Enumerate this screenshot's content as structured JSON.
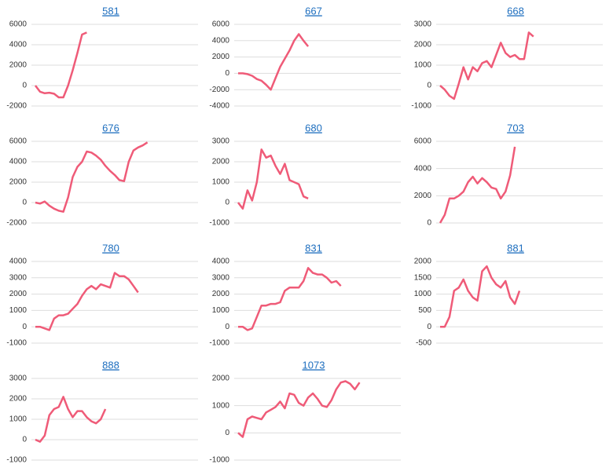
{
  "chart_data": [
    {
      "type": "line",
      "title": "581",
      "color": "#ef5b78",
      "grid": true,
      "ylim": [
        -2000,
        6000
      ],
      "yticks": [
        -2000,
        0,
        2000,
        4000,
        6000
      ],
      "values": [
        0,
        -600,
        -750,
        -700,
        -800,
        -1150,
        -1150,
        0,
        1500,
        3200,
        5000,
        5200
      ]
    },
    {
      "type": "line",
      "title": "667",
      "color": "#ef5b78",
      "grid": true,
      "ylim": [
        -4000,
        6000
      ],
      "yticks": [
        -4000,
        -2000,
        0,
        2000,
        4000,
        6000
      ],
      "values": [
        0,
        0,
        -100,
        -300,
        -700,
        -900,
        -1400,
        -2000,
        -600,
        800,
        1800,
        2800,
        4000,
        4800,
        4000,
        3300
      ]
    },
    {
      "type": "line",
      "title": "668",
      "color": "#ef5b78",
      "grid": true,
      "ylim": [
        -1000,
        3000
      ],
      "yticks": [
        -1000,
        0,
        1000,
        2000,
        3000
      ],
      "values": [
        0,
        -200,
        -500,
        -650,
        100,
        900,
        300,
        900,
        700,
        1100,
        1200,
        900,
        1500,
        2100,
        1600,
        1400,
        1500,
        1300,
        1300,
        2600,
        2400
      ]
    },
    {
      "type": "line",
      "title": "676",
      "color": "#ef5b78",
      "grid": true,
      "ylim": [
        -2000,
        6000
      ],
      "yticks": [
        -2000,
        0,
        2000,
        4000,
        6000
      ],
      "values": [
        0,
        -100,
        100,
        -300,
        -600,
        -800,
        -900,
        500,
        2500,
        3500,
        4000,
        5000,
        4900,
        4600,
        4200,
        3600,
        3100,
        2700,
        2200,
        2100,
        4000,
        5100,
        5400,
        5600,
        5900
      ]
    },
    {
      "type": "line",
      "title": "680",
      "color": "#ef5b78",
      "grid": true,
      "ylim": [
        -1000,
        3000
      ],
      "yticks": [
        -1000,
        0,
        1000,
        2000,
        3000
      ],
      "values": [
        0,
        -300,
        600,
        100,
        1000,
        2600,
        2200,
        2300,
        1800,
        1400,
        1900,
        1100,
        1000,
        900,
        300,
        200
      ]
    },
    {
      "type": "line",
      "title": "703",
      "color": "#ef5b78",
      "grid": true,
      "ylim": [
        0,
        6000
      ],
      "yticks": [
        0,
        2000,
        4000,
        6000
      ],
      "values": [
        0,
        600,
        1800,
        1800,
        2000,
        2300,
        3000,
        3400,
        2900,
        3300,
        3000,
        2600,
        2500,
        1800,
        2300,
        3500,
        5600
      ]
    },
    {
      "type": "line",
      "title": "780",
      "color": "#ef5b78",
      "grid": true,
      "ylim": [
        -1000,
        4000
      ],
      "yticks": [
        -1000,
        0,
        1000,
        2000,
        3000,
        4000
      ],
      "values": [
        0,
        0,
        -100,
        -200,
        500,
        700,
        700,
        800,
        1100,
        1400,
        1900,
        2300,
        2500,
        2300,
        2600,
        2500,
        2400,
        3300,
        3100,
        3100,
        2900,
        2500,
        2100
      ]
    },
    {
      "type": "line",
      "title": "831",
      "color": "#ef5b78",
      "grid": true,
      "ylim": [
        -1000,
        4000
      ],
      "yticks": [
        -1000,
        0,
        1000,
        2000,
        3000,
        4000
      ],
      "values": [
        0,
        0,
        -200,
        -100,
        600,
        1300,
        1300,
        1400,
        1400,
        1500,
        2200,
        2400,
        2400,
        2400,
        2800,
        3600,
        3300,
        3200,
        3200,
        3000,
        2700,
        2800,
        2500
      ]
    },
    {
      "type": "line",
      "title": "881",
      "color": "#ef5b78",
      "grid": true,
      "ylim": [
        -500,
        2000
      ],
      "yticks": [
        -500,
        0,
        500,
        1000,
        1500,
        2000
      ],
      "values": [
        0,
        0,
        300,
        1100,
        1200,
        1450,
        1100,
        900,
        800,
        1700,
        1850,
        1500,
        1300,
        1200,
        1400,
        900,
        700,
        1100
      ]
    },
    {
      "type": "line",
      "title": "888",
      "color": "#ef5b78",
      "grid": true,
      "ylim": [
        -1000,
        3000
      ],
      "yticks": [
        -1000,
        0,
        1000,
        2000,
        3000
      ],
      "values": [
        0,
        -100,
        200,
        1200,
        1500,
        1600,
        2100,
        1500,
        1100,
        1400,
        1400,
        1100,
        900,
        800,
        1000,
        1500
      ]
    },
    {
      "type": "line",
      "title": "1073",
      "color": "#ef5b78",
      "grid": true,
      "ylim": [
        -1000,
        2000
      ],
      "yticks": [
        -1000,
        0,
        1000,
        2000
      ],
      "values": [
        0,
        -150,
        500,
        600,
        550,
        500,
        750,
        850,
        950,
        1150,
        900,
        1450,
        1400,
        1100,
        1000,
        1300,
        1450,
        1250,
        1000,
        950,
        1200,
        1600,
        1850,
        1900,
        1800,
        1600,
        1850
      ]
    }
  ]
}
